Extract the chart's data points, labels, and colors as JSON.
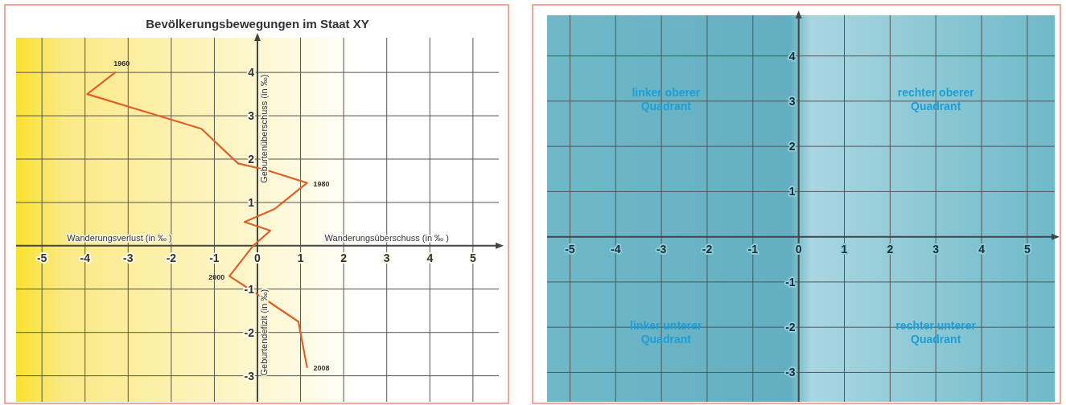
{
  "chart_data": [
    {
      "type": "line",
      "title": "Bevölkerungsbewegungen im Staat XY",
      "xlabel": "Wanderungsüberschuss (in ‰ )",
      "ylabel": "Geburtenüberschuss (in ‰)",
      "xlim": [
        -5.6,
        5.6
      ],
      "ylim": [
        -3.6,
        4.8
      ],
      "xticks": [
        -5,
        -4,
        -3,
        -2,
        -1,
        0,
        1,
        2,
        3,
        4,
        5
      ],
      "yticks": [
        -3,
        -2,
        -1,
        1,
        2,
        3,
        4
      ],
      "grid": true,
      "series": [
        {
          "color": "#e0602a",
          "x": [
            -3.3,
            -3.95,
            -1.3,
            -0.45,
            0.2,
            1.15,
            0.4,
            -0.3,
            0.3,
            -0.1,
            -0.65,
            0.2,
            0.95,
            1.15
          ],
          "values": [
            4.0,
            3.5,
            2.7,
            1.9,
            1.75,
            1.45,
            0.85,
            0.55,
            0.35,
            0.0,
            -0.7,
            -1.25,
            -1.75,
            -2.8
          ]
        }
      ],
      "annotations": [
        "Wanderungsverlust (in ‰ )",
        "Geburtendefizit (in ‰)",
        {
          "text": "1960",
          "x": -3.3,
          "y": 4.0
        },
        {
          "text": "1980",
          "x": 1.15,
          "y": 1.45
        },
        {
          "text": "2000",
          "x": -0.65,
          "y": -0.7
        },
        {
          "text": "2008",
          "x": 1.15,
          "y": -2.8
        }
      ]
    },
    {
      "type": "scatter",
      "xlim": [
        -5.5,
        5.6
      ],
      "ylim": [
        -3.65,
        4.9
      ],
      "xticks": [
        -5,
        -4,
        -3,
        -2,
        -1,
        0,
        1,
        2,
        3,
        4,
        5
      ],
      "yticks": [
        -3,
        -2,
        -1,
        1,
        2,
        3,
        4
      ],
      "grid": true,
      "annotations": [
        "linker oberer Quadrant",
        "rechter oberer Quadrant",
        "linker unterer Quadrant",
        "rechter unterer Quadrant"
      ]
    }
  ]
}
